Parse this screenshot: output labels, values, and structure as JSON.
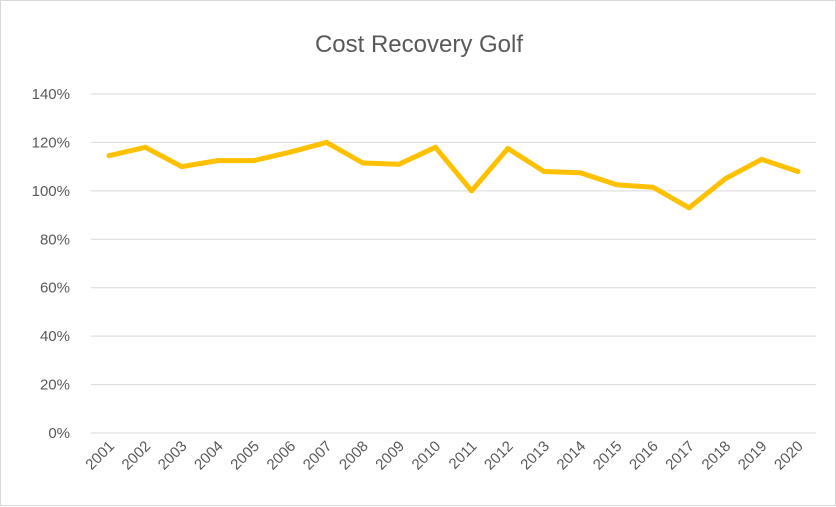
{
  "chart_data": {
    "type": "line",
    "title": "Cost Recovery Golf",
    "xlabel": "",
    "ylabel": "",
    "categories": [
      "2001",
      "2002",
      "2003",
      "2004",
      "2005",
      "2006",
      "2007",
      "2008",
      "2009",
      "2010",
      "2011",
      "2012",
      "2013",
      "2014",
      "2015",
      "2016",
      "2017",
      "2018",
      "2019",
      "2020"
    ],
    "series": [
      {
        "name": "",
        "color": "#ffc000",
        "values": [
          1.145,
          1.18,
          1.1,
          1.125,
          1.125,
          1.16,
          1.2,
          1.115,
          1.11,
          1.18,
          1.0,
          1.175,
          1.08,
          1.075,
          1.025,
          1.015,
          0.93,
          1.05,
          1.13,
          1.08
        ]
      }
    ],
    "ylim": [
      0,
      1.4
    ],
    "yticks": [
      0,
      0.2,
      0.4,
      0.6,
      0.8,
      1.0,
      1.2,
      1.4
    ],
    "ytick_labels": [
      "0%",
      "20%",
      "40%",
      "60%",
      "80%",
      "100%",
      "120%",
      "140%"
    ],
    "grid": true,
    "legend": "none",
    "colors": {
      "gridline": "#d9d9d9",
      "text": "#595959"
    }
  }
}
